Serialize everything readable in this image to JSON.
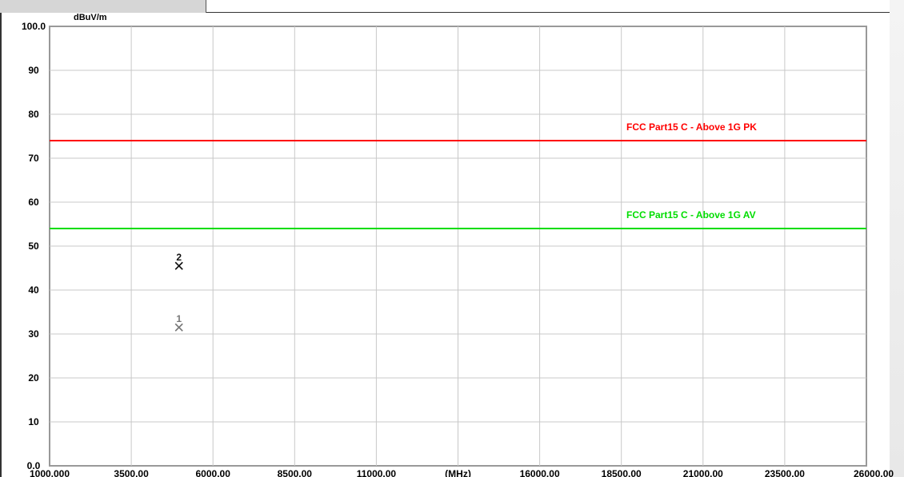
{
  "header": {
    "tab_label": "",
    "caption": ""
  },
  "chart_data": {
    "type": "line",
    "title": "",
    "ylabel": "dBuV/m",
    "xunit": "(MHz)",
    "xlim": [
      1000,
      26000
    ],
    "ylim": [
      0,
      100
    ],
    "xtick_labels": [
      "1000.000",
      "3500.00",
      "6000.00",
      "8500.00",
      "11000.00",
      "(MHz)",
      "16000.00",
      "18500.00",
      "21000.00",
      "23500.00",
      "26000.00"
    ],
    "xtick_values": [
      1000,
      3500,
      6000,
      8500,
      11000,
      13500,
      16000,
      18500,
      21000,
      23500,
      26000
    ],
    "ytick_labels": [
      "100.0",
      "90",
      "80",
      "70",
      "60",
      "50",
      "40",
      "30",
      "20",
      "10",
      "0.0"
    ],
    "ytick_values": [
      100,
      90,
      80,
      70,
      60,
      50,
      40,
      30,
      20,
      10,
      0
    ],
    "grid": true,
    "limit_lines": [
      {
        "name": "FCC Part15 C - Above 1G PK",
        "value": 74,
        "color": "#ff0000"
      },
      {
        "name": "FCC Part15 C - Above 1G AV",
        "value": 54,
        "color": "#00dd00"
      }
    ],
    "markers": [
      {
        "label": "1",
        "x": 4960,
        "y": 31.5,
        "color": "#777777"
      },
      {
        "label": "2",
        "x": 4960,
        "y": 45.5,
        "color": "#111111"
      }
    ]
  }
}
